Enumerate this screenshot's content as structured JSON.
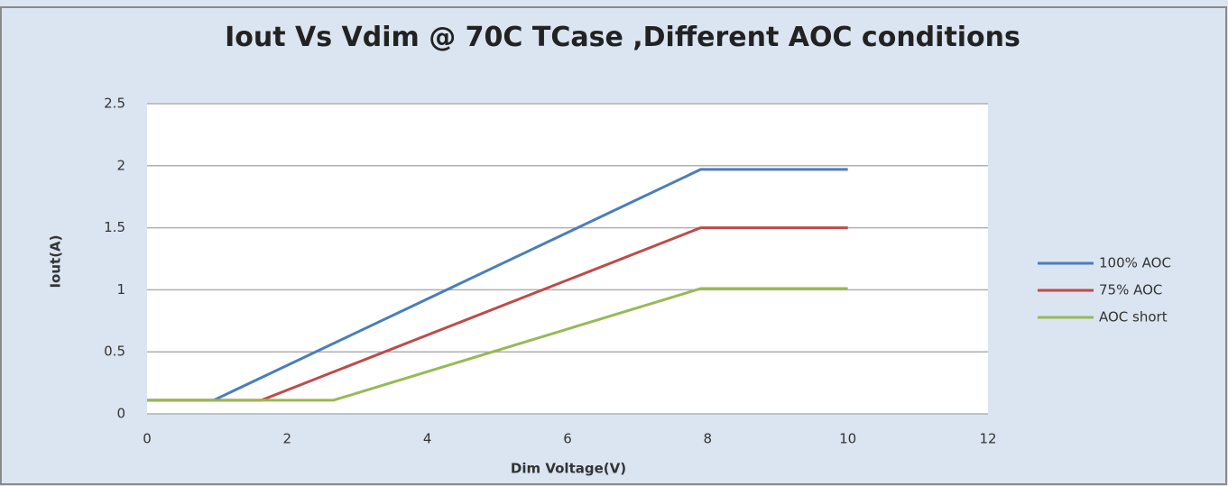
{
  "chart_data": {
    "type": "line",
    "title": "Iout Vs Vdim @ 70C  TCase ,Different AOC conditions",
    "x_label": "Dim Voltage(V)",
    "y_label": "Iout(A)",
    "series": [
      {
        "name": "100% AOC",
        "color": "#4a7ebb",
        "x": [
          0,
          0.95,
          7.9,
          10
        ],
        "values": [
          0.11,
          0.11,
          1.97,
          1.97
        ]
      },
      {
        "name": "75% AOC",
        "color": "#be4b48",
        "x": [
          0,
          1.63,
          7.9,
          10
        ],
        "values": [
          0.11,
          0.11,
          1.5,
          1.5
        ]
      },
      {
        "name": "AOC short",
        "color": "#98b954",
        "x": [
          0,
          2.66,
          7.9,
          10
        ],
        "values": [
          0.11,
          0.11,
          1.01,
          1.01
        ]
      }
    ],
    "xlim": [
      0,
      12
    ],
    "xticks": [
      0,
      2,
      4,
      6,
      8,
      10,
      12
    ],
    "ylim": [
      0,
      2.5
    ],
    "yticks": [
      0,
      0.5,
      1,
      1.5,
      2,
      2.5
    ],
    "grid": true,
    "legend": "right"
  }
}
